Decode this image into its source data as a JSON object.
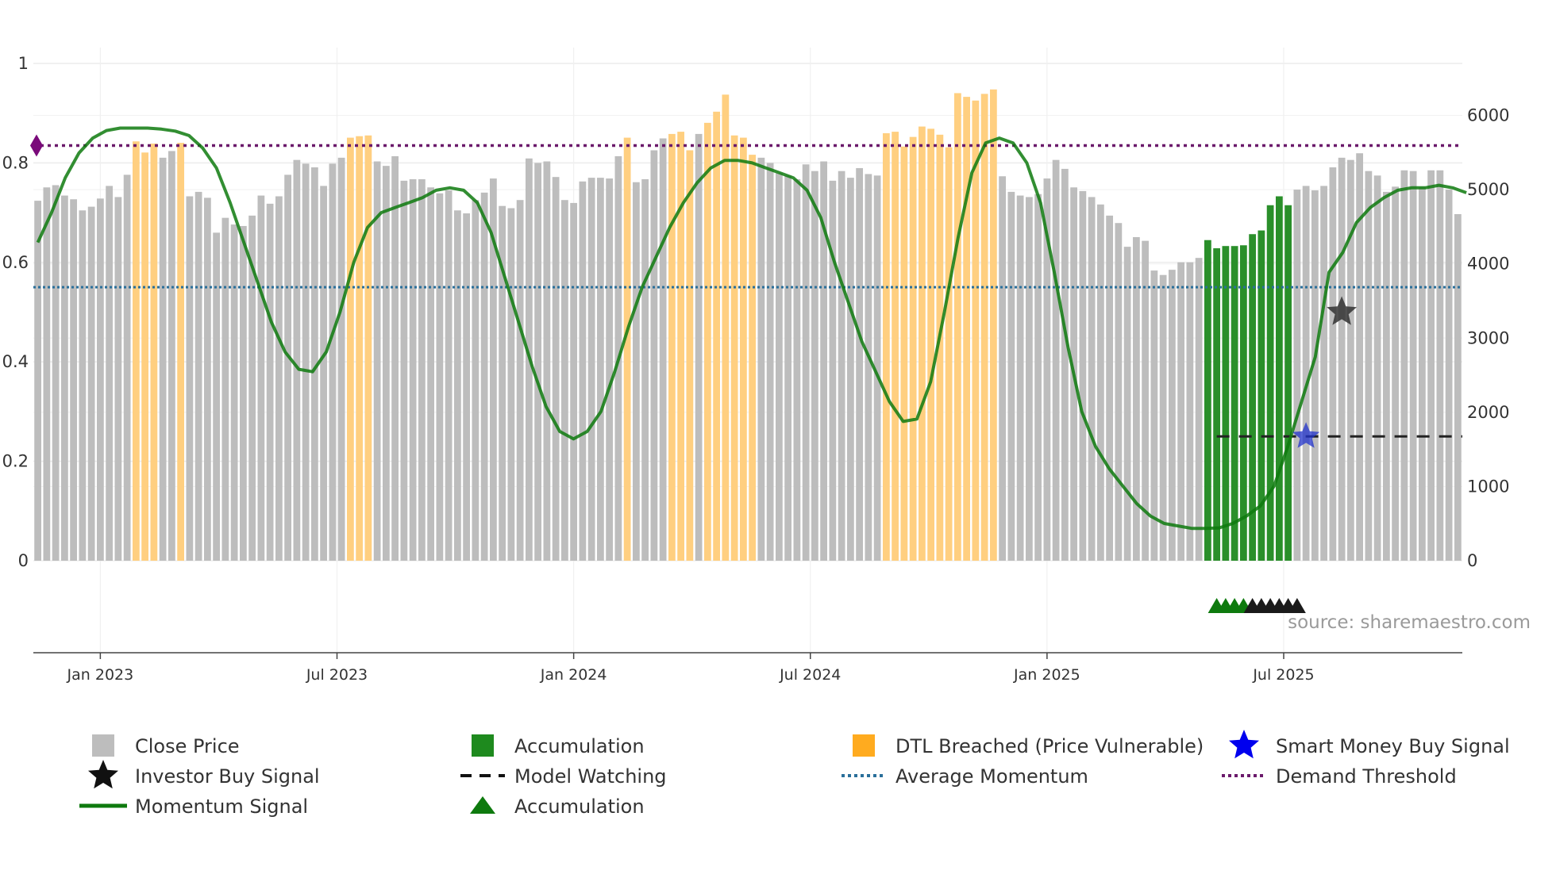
{
  "source_text": "source: sharemaestro.com",
  "chart_data": {
    "type": "bar",
    "title": "",
    "left_axis": {
      "min": 0,
      "max": 1,
      "ticks": [
        0,
        0.2,
        0.4,
        0.6,
        0.8,
        1
      ],
      "labels": [
        "0",
        "0.2",
        "0.4",
        "0.6",
        "0.8",
        "1"
      ]
    },
    "right_axis": {
      "min": 0,
      "max": 6700,
      "ticks": [
        0,
        1000,
        2000,
        3000,
        4000,
        5000,
        6000
      ],
      "labels": [
        "0",
        "1000",
        "2000",
        "3000",
        "4000",
        "5000",
        "6000"
      ]
    },
    "x_range": [
      0,
      160
    ],
    "x_ticks": [
      {
        "pos": 7.5,
        "label": "Jan 2023"
      },
      {
        "pos": 34,
        "label": "Jul 2023"
      },
      {
        "pos": 60.5,
        "label": "Jan 2024"
      },
      {
        "pos": 87,
        "label": "Jul 2024"
      },
      {
        "pos": 113.5,
        "label": "Jan 2025"
      },
      {
        "pos": 140,
        "label": "Jul 2025"
      }
    ],
    "close_price": [
      4850,
      5030,
      5060,
      4920,
      4870,
      4720,
      4770,
      4880,
      5050,
      4900,
      5200,
      5650,
      5500,
      5620,
      5430,
      5520,
      5630,
      4910,
      4970,
      4890,
      4420,
      4620,
      4530,
      4510,
      4650,
      4920,
      4810,
      4910,
      5200,
      5400,
      5350,
      5300,
      5050,
      5350,
      5430,
      5700,
      5720,
      5730,
      5380,
      5320,
      5450,
      5120,
      5140,
      5140,
      5030,
      4950,
      4990,
      4720,
      4680,
      4860,
      4960,
      5150,
      4780,
      4750,
      4860,
      5420,
      5360,
      5380,
      5170,
      4860,
      4820,
      5110,
      5160,
      5160,
      5150,
      5450,
      5700,
      5100,
      5140,
      5530,
      5690,
      5750,
      5780,
      5530,
      5750,
      5900,
      6050,
      6280,
      5730,
      5700,
      5470,
      5430,
      5360,
      5220,
      5190,
      5140,
      5340,
      5250,
      5380,
      5120,
      5250,
      5160,
      5290,
      5210,
      5190,
      5760,
      5780,
      5580,
      5710,
      5850,
      5820,
      5740,
      5570,
      6300,
      6250,
      6200,
      6290,
      6350,
      5180,
      4970,
      4920,
      4900,
      4940,
      5150,
      5400,
      5280,
      5030,
      4980,
      4900,
      4800,
      4650,
      4550,
      4230,
      4360,
      4310,
      3910,
      3850,
      3920,
      4020,
      4020,
      4080,
      4320,
      4210,
      4240,
      4240,
      4250,
      4400,
      4450,
      4790,
      4910,
      4790,
      5000,
      5050,
      4990,
      5050,
      5300,
      5430,
      5400,
      5490,
      5250,
      5190,
      4970,
      5040,
      5260,
      5250,
      5030,
      5260,
      5260,
      5000,
      4670
    ],
    "price_color_flags": [
      "g",
      "g",
      "g",
      "g",
      "g",
      "g",
      "g",
      "g",
      "g",
      "g",
      "g",
      "o",
      "o",
      "o",
      "g",
      "g",
      "o",
      "g",
      "g",
      "g",
      "g",
      "g",
      "g",
      "g",
      "g",
      "g",
      "g",
      "g",
      "g",
      "g",
      "g",
      "g",
      "g",
      "g",
      "g",
      "o",
      "o",
      "o",
      "g",
      "g",
      "g",
      "g",
      "g",
      "g",
      "g",
      "g",
      "g",
      "g",
      "g",
      "g",
      "g",
      "g",
      "g",
      "g",
      "g",
      "g",
      "g",
      "g",
      "g",
      "g",
      "g",
      "g",
      "g",
      "g",
      "g",
      "g",
      "o",
      "g",
      "g",
      "g",
      "g",
      "o",
      "o",
      "o",
      "g",
      "o",
      "o",
      "o",
      "o",
      "o",
      "o",
      "g",
      "g",
      "g",
      "g",
      "g",
      "g",
      "g",
      "g",
      "g",
      "g",
      "g",
      "g",
      "g",
      "g",
      "o",
      "o",
      "o",
      "o",
      "o",
      "o",
      "o",
      "o",
      "o",
      "o",
      "o",
      "o",
      "o",
      "g",
      "g",
      "g",
      "g",
      "g",
      "g",
      "g",
      "g",
      "g",
      "g",
      "g",
      "g",
      "g",
      "g",
      "g",
      "g",
      "g",
      "g",
      "g",
      "g",
      "g",
      "g",
      "g",
      "a",
      "a",
      "a",
      "a",
      "a",
      "a",
      "a",
      "a",
      "a",
      "a",
      "g",
      "g",
      "g",
      "g",
      "g",
      "g",
      "g",
      "g",
      "g",
      "g",
      "g",
      "g",
      "g",
      "g",
      "g",
      "g",
      "g",
      "g",
      "g",
      "g",
      "g"
    ],
    "momentum": [
      0.64,
      0.7,
      0.77,
      0.82,
      0.85,
      0.865,
      0.87,
      0.87,
      0.87,
      0.868,
      0.864,
      0.855,
      0.83,
      0.79,
      0.72,
      0.64,
      0.56,
      0.48,
      0.42,
      0.385,
      0.38,
      0.42,
      0.5,
      0.6,
      0.67,
      0.7,
      0.71,
      0.72,
      0.73,
      0.745,
      0.75,
      0.745,
      0.72,
      0.66,
      0.57,
      0.48,
      0.39,
      0.31,
      0.26,
      0.245,
      0.26,
      0.3,
      0.38,
      0.47,
      0.55,
      0.61,
      0.67,
      0.72,
      0.76,
      0.79,
      0.805,
      0.805,
      0.8,
      0.79,
      0.78,
      0.77,
      0.745,
      0.69,
      0.6,
      0.52,
      0.44,
      0.38,
      0.32,
      0.28,
      0.285,
      0.36,
      0.5,
      0.65,
      0.78,
      0.84,
      0.85,
      0.84,
      0.8,
      0.72,
      0.58,
      0.43,
      0.3,
      0.23,
      0.185,
      0.15,
      0.115,
      0.09,
      0.075,
      0.07,
      0.065,
      0.065,
      0.066,
      0.075,
      0.09,
      0.11,
      0.15,
      0.23,
      0.32,
      0.41,
      0.58,
      0.62,
      0.68,
      0.71,
      0.73,
      0.745,
      0.75,
      0.75,
      0.755,
      0.75,
      0.74
    ],
    "momentum_x": [
      0,
      1,
      2,
      3,
      4,
      5,
      6,
      7,
      8,
      9,
      10,
      11,
      12,
      13,
      14,
      15,
      16,
      17,
      18,
      19,
      20,
      21,
      22,
      23,
      24,
      25,
      26,
      27,
      28,
      29,
      30,
      31,
      32,
      33,
      34,
      35,
      36,
      37,
      38,
      39,
      40,
      41,
      42,
      43,
      44,
      45,
      46,
      47,
      48,
      49,
      50,
      51,
      52,
      53,
      54,
      55,
      56,
      57,
      58,
      59,
      60,
      61,
      62,
      63,
      64,
      65,
      66,
      67,
      68,
      69,
      70,
      71,
      72,
      73,
      74,
      75,
      76,
      77,
      78,
      79,
      80,
      81,
      82,
      83,
      84,
      85,
      86,
      87,
      88,
      89,
      90,
      91,
      92,
      93,
      94,
      95,
      96,
      97,
      98,
      99,
      100,
      101,
      102,
      103,
      104
    ],
    "momentum_x_scale": 1.538,
    "average_momentum": 0.55,
    "demand_threshold": 0.835,
    "model_watching": {
      "from": 132,
      "to": 160,
      "value": 0.25
    },
    "investor_buy_signal": {
      "x": 146,
      "value": 0.5
    },
    "smart_money_buy_signal": {
      "x": 142,
      "value": 0.25
    },
    "accumulation_markers": {
      "green_x": [
        132,
        133,
        134,
        135
      ],
      "black_x": [
        136,
        137,
        138,
        139,
        140,
        141
      ]
    },
    "legend": [
      {
        "label": "Close Price",
        "kind": "square",
        "color": "#bdbdbd"
      },
      {
        "label": "Accumulation",
        "kind": "square",
        "color": "#1e8a1e"
      },
      {
        "label": "DTL Breached (Price Vulnerable)",
        "kind": "square",
        "color": "#ffab1f"
      },
      {
        "label": "Smart Money Buy Signal",
        "kind": "star",
        "color": "#0000ee"
      },
      {
        "label": "Investor Buy Signal",
        "kind": "star",
        "color": "#111111"
      },
      {
        "label": "Model Watching",
        "kind": "dash",
        "color": "#111111"
      },
      {
        "label": "Average Momentum",
        "kind": "dot",
        "color": "#2a6f9a"
      },
      {
        "label": "Demand Threshold",
        "kind": "dot",
        "color": "#6b1a6b"
      },
      {
        "label": "Momentum Signal",
        "kind": "line",
        "color": "#0e7a0e"
      },
      {
        "label": "Accumulation",
        "kind": "triangle",
        "color": "#0e7a0e"
      }
    ],
    "colors": {
      "price": "#bdbdbd",
      "dtl": "#ffcf80",
      "accumulation": "#2a8f2a",
      "momentum": "#0e7a0e",
      "demand": "#6b1a6b",
      "average": "#2a6f9a",
      "grid": "#ececec"
    }
  }
}
